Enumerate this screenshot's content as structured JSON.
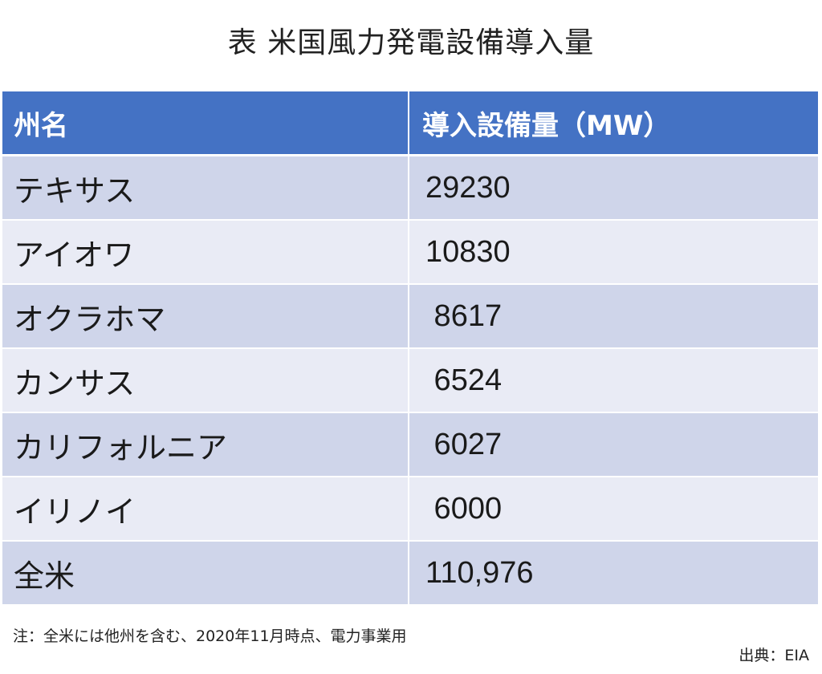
{
  "title": "表 米国風力発電設備導入量",
  "table": {
    "headers": [
      "州名",
      "導入設備量（MW）"
    ],
    "rows": [
      {
        "state": "テキサス",
        "capacity": "29230"
      },
      {
        "state": "アイオワ",
        "capacity": "10830"
      },
      {
        "state": "オクラホマ",
        "capacity": " 8617"
      },
      {
        "state": "カンサス",
        "capacity": " 6524"
      },
      {
        "state": "カリフォルニア",
        "capacity": " 6027"
      },
      {
        "state": "イリノイ",
        "capacity": " 6000"
      },
      {
        "state": "全米",
        "capacity": "110,976"
      }
    ]
  },
  "note": "注：全米には他州を含む、2020年11月時点、電力事業用",
  "source": "出典：EIA",
  "colors": {
    "header_bg": "#4472c4",
    "row_odd": "#cfd5ea",
    "row_even": "#e9ebf5"
  }
}
